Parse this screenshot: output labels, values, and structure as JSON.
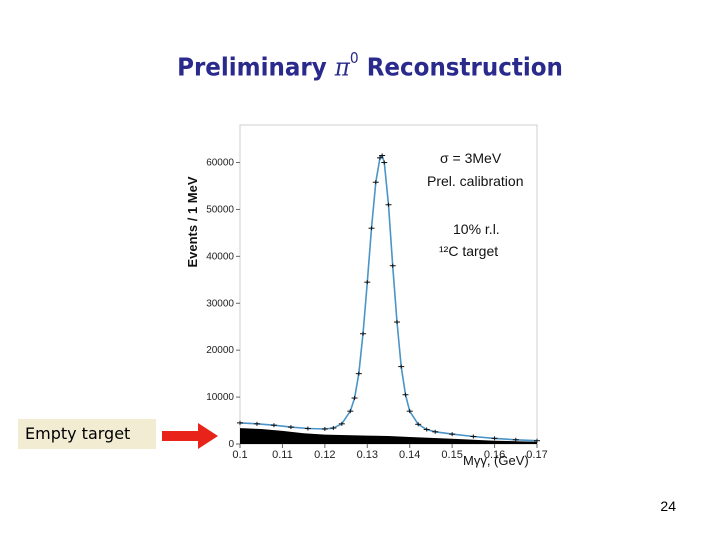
{
  "slide": {
    "title_prefix": "Preliminary",
    "title_symbol": "π",
    "title_superscript": "0",
    "title_suffix": "Reconstruction",
    "callout_label": "Empty target",
    "page_number": "24",
    "colors": {
      "title": "#2a2a8c",
      "fit_curve": "#4a94c8",
      "callout_bg": "#f1ecd2",
      "arrow": "#e8231a",
      "empty_target_fill": "#000000"
    }
  },
  "chart_data": {
    "type": "line",
    "xlabel": "Mγγ, (GeV)",
    "ylabel": "Events / 1 MeV",
    "xlim": [
      0.1,
      0.17
    ],
    "ylim": [
      0,
      68000
    ],
    "x_ticks": [
      "0.1",
      "0.11",
      "0.12",
      "0.13",
      "0.14",
      "0.15",
      "0.16",
      "0.17"
    ],
    "y_ticks": [
      "0",
      "10000",
      "20000",
      "30000",
      "40000",
      "50000",
      "60000"
    ],
    "annotations": [
      "σ = 3MeV",
      "Prel. calibration",
      "10% r.l.",
      "¹²C target"
    ],
    "series": [
      {
        "x": [
          0.1,
          0.104,
          0.108,
          0.112,
          0.116,
          0.12,
          0.122,
          0.124,
          0.126,
          0.127,
          0.128,
          0.129,
          0.13,
          0.131,
          0.132,
          0.133,
          0.1335,
          0.134,
          0.135,
          0.136,
          0.137,
          0.138,
          0.139,
          0.14,
          0.142,
          0.144,
          0.146,
          0.15,
          0.155,
          0.16,
          0.165,
          0.17
        ],
        "y": [
          4500,
          4300,
          4000,
          3600,
          3300,
          3200,
          3400,
          4300,
          7000,
          9800,
          15000,
          23500,
          34500,
          46000,
          55800,
          61000,
          61500,
          60000,
          51000,
          38000,
          26000,
          16500,
          10500,
          7000,
          4200,
          3100,
          2600,
          2100,
          1600,
          1200,
          900,
          700
        ]
      },
      {
        "x": [
          0.1,
          0.105,
          0.11,
          0.115,
          0.12,
          0.125,
          0.13,
          0.135,
          0.14,
          0.145,
          0.15,
          0.155,
          0.16,
          0.165,
          0.17
        ],
        "y": [
          3400,
          3200,
          2800,
          2300,
          2000,
          1900,
          1800,
          1700,
          1500,
          1300,
          1100,
          900,
          700,
          600,
          500
        ]
      }
    ]
  }
}
